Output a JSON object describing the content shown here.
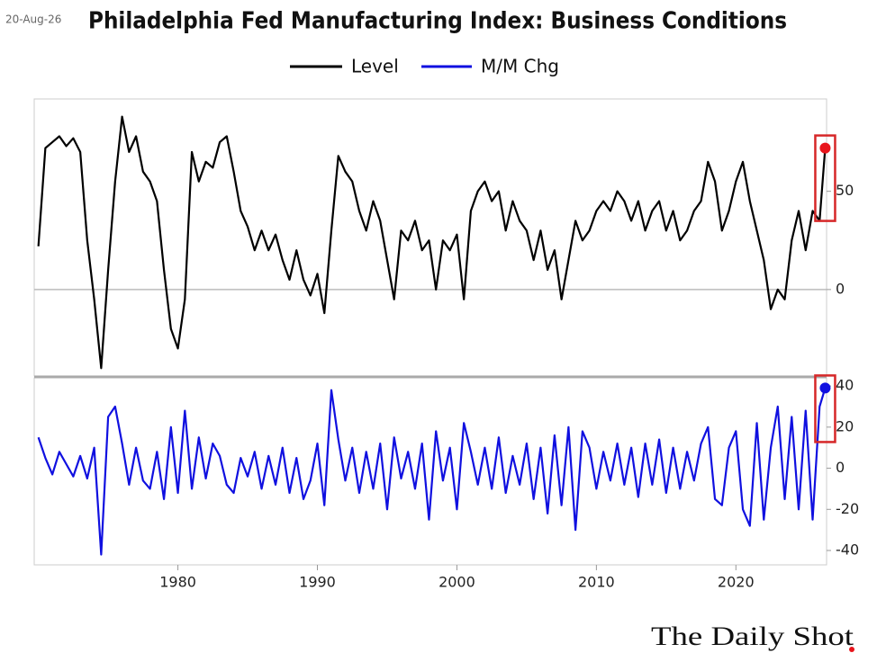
{
  "header": {
    "date": "20-Aug-26",
    "title": "Philadelphia Fed Manufacturing Index: Business Conditions"
  },
  "footer": {
    "logo": "The Daily Shot"
  },
  "chart_data": [
    {
      "type": "line",
      "xlim": [
        1969.7,
        2026.5
      ],
      "ylim": [
        -44,
        97
      ],
      "yticks": [
        0,
        50
      ],
      "zero_line": true,
      "x": [
        1970.0,
        1970.5,
        1971.0,
        1971.5,
        1972.0,
        1972.5,
        1973.0,
        1973.5,
        1974.0,
        1974.5,
        1975.0,
        1975.5,
        1976.0,
        1976.5,
        1977.0,
        1977.5,
        1978.0,
        1978.5,
        1979.0,
        1979.5,
        1980.0,
        1980.5,
        1981.0,
        1981.5,
        1982.0,
        1982.5,
        1983.0,
        1983.5,
        1984.0,
        1984.5,
        1985.0,
        1985.5,
        1986.0,
        1986.5,
        1987.0,
        1987.5,
        1988.0,
        1988.5,
        1989.0,
        1989.5,
        1990.0,
        1990.5,
        1991.0,
        1991.5,
        1992.0,
        1992.5,
        1993.0,
        1993.5,
        1994.0,
        1994.5,
        1995.0,
        1995.5,
        1996.0,
        1996.5,
        1997.0,
        1997.5,
        1998.0,
        1998.5,
        1999.0,
        1999.5,
        2000.0,
        2000.5,
        2001.0,
        2001.5,
        2002.0,
        2002.5,
        2003.0,
        2003.5,
        2004.0,
        2004.5,
        2005.0,
        2005.5,
        2006.0,
        2006.5,
        2007.0,
        2007.5,
        2008.0,
        2008.5,
        2009.0,
        2009.5,
        2010.0,
        2010.5,
        2011.0,
        2011.5,
        2012.0,
        2012.5,
        2013.0,
        2013.5,
        2014.0,
        2014.5,
        2015.0,
        2015.5,
        2016.0,
        2016.5,
        2017.0,
        2017.5,
        2018.0,
        2018.5,
        2019.0,
        2019.5,
        2020.0,
        2020.5,
        2021.0,
        2021.5,
        2022.0,
        2022.5,
        2023.0,
        2023.5,
        2024.0,
        2024.5,
        2025.0,
        2025.5,
        2026.0,
        2026.4
      ],
      "series": [
        {
          "name": "Level",
          "color": "#000000",
          "last_marker_color": "#e8141b",
          "values": [
            22,
            72,
            75,
            78,
            73,
            77,
            70,
            25,
            -5,
            -40,
            10,
            55,
            88,
            70,
            78,
            60,
            55,
            45,
            10,
            -20,
            -30,
            -5,
            70,
            55,
            65,
            62,
            75,
            78,
            60,
            40,
            32,
            20,
            30,
            20,
            28,
            15,
            5,
            20,
            5,
            -3,
            8,
            -12,
            30,
            68,
            60,
            55,
            40,
            30,
            45,
            35,
            15,
            -5,
            30,
            25,
            35,
            20,
            25,
            0,
            25,
            20,
            28,
            -5,
            40,
            50,
            55,
            45,
            50,
            30,
            45,
            35,
            30,
            15,
            30,
            10,
            20,
            -5,
            15,
            35,
            25,
            30,
            40,
            45,
            40,
            50,
            45,
            35,
            45,
            30,
            40,
            45,
            30,
            40,
            25,
            30,
            40,
            45,
            65,
            55,
            30,
            40,
            55,
            65,
            45,
            30,
            15,
            -10,
            0,
            -5,
            25,
            40,
            20,
            40,
            35,
            72
          ]
        }
      ],
      "highlight_color": "#d62728"
    },
    {
      "type": "line",
      "xlim": [
        1969.7,
        2026.5
      ],
      "ylim": [
        -47,
        44
      ],
      "yticks": [
        -40,
        -20,
        0,
        20,
        40
      ],
      "xticks": [
        1980,
        1990,
        2000,
        2010,
        2020
      ],
      "x": [
        1970.0,
        1970.5,
        1971.0,
        1971.5,
        1972.0,
        1972.5,
        1973.0,
        1973.5,
        1974.0,
        1974.5,
        1975.0,
        1975.5,
        1976.0,
        1976.5,
        1977.0,
        1977.5,
        1978.0,
        1978.5,
        1979.0,
        1979.5,
        1980.0,
        1980.5,
        1981.0,
        1981.5,
        1982.0,
        1982.5,
        1983.0,
        1983.5,
        1984.0,
        1984.5,
        1985.0,
        1985.5,
        1986.0,
        1986.5,
        1987.0,
        1987.5,
        1988.0,
        1988.5,
        1989.0,
        1989.5,
        1990.0,
        1990.5,
        1991.0,
        1991.5,
        1992.0,
        1992.5,
        1993.0,
        1993.5,
        1994.0,
        1994.5,
        1995.0,
        1995.5,
        1996.0,
        1996.5,
        1997.0,
        1997.5,
        1998.0,
        1998.5,
        1999.0,
        1999.5,
        2000.0,
        2000.5,
        2001.0,
        2001.5,
        2002.0,
        2002.5,
        2003.0,
        2003.5,
        2004.0,
        2004.5,
        2005.0,
        2005.5,
        2006.0,
        2006.5,
        2007.0,
        2007.5,
        2008.0,
        2008.5,
        2009.0,
        2009.5,
        2010.0,
        2010.5,
        2011.0,
        2011.5,
        2012.0,
        2012.5,
        2013.0,
        2013.5,
        2014.0,
        2014.5,
        2015.0,
        2015.5,
        2016.0,
        2016.5,
        2017.0,
        2017.5,
        2018.0,
        2018.5,
        2019.0,
        2019.5,
        2020.0,
        2020.5,
        2021.0,
        2021.5,
        2022.0,
        2022.5,
        2023.0,
        2023.5,
        2024.0,
        2024.5,
        2025.0,
        2025.5,
        2026.0,
        2026.4
      ],
      "series": [
        {
          "name": "M/M Chg",
          "color": "#1010e0",
          "last_marker_color": "#1010e0",
          "values": [
            15,
            5,
            -3,
            8,
            2,
            -4,
            6,
            -5,
            10,
            -42,
            25,
            30,
            12,
            -8,
            10,
            -6,
            -10,
            8,
            -15,
            20,
            -12,
            28,
            -10,
            15,
            -5,
            12,
            6,
            -8,
            -12,
            5,
            -4,
            8,
            -10,
            6,
            -8,
            10,
            -12,
            5,
            -15,
            -6,
            12,
            -18,
            38,
            14,
            -6,
            10,
            -12,
            8,
            -10,
            12,
            -20,
            15,
            -5,
            8,
            -10,
            12,
            -25,
            18,
            -6,
            10,
            -20,
            22,
            8,
            -8,
            10,
            -10,
            15,
            -12,
            6,
            -8,
            12,
            -15,
            10,
            -22,
            16,
            -18,
            20,
            -30,
            18,
            10,
            -10,
            8,
            -6,
            12,
            -8,
            10,
            -14,
            12,
            -8,
            14,
            -12,
            10,
            -10,
            8,
            -6,
            12,
            20,
            -15,
            -18,
            10,
            18,
            -20,
            -28,
            22,
            -25,
            10,
            30,
            -15,
            25,
            -20,
            28,
            -25,
            30,
            39
          ]
        }
      ],
      "highlight_color": "#d62728"
    }
  ]
}
